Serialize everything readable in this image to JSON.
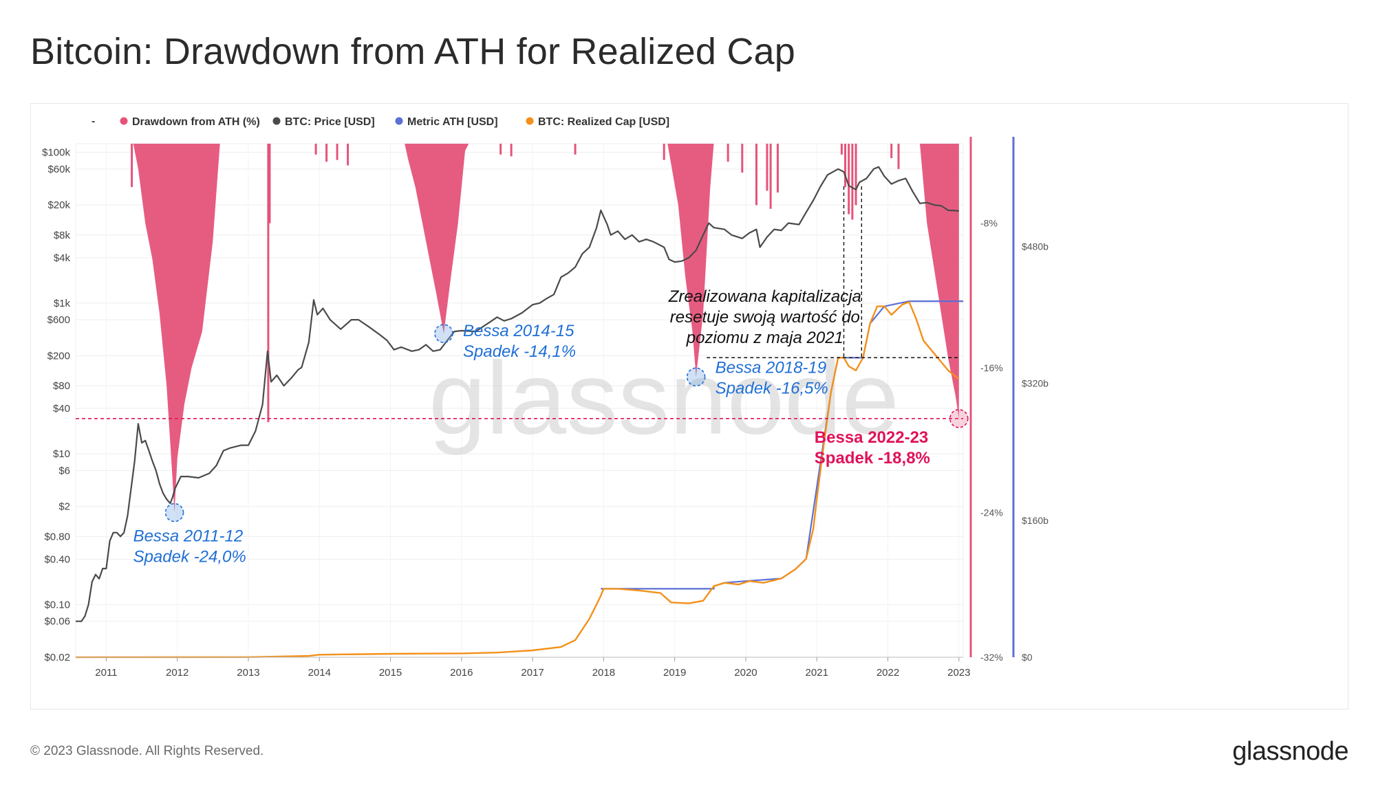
{
  "title": "Bitcoin: Drawdown from ATH for Realized Cap",
  "footer": {
    "copyright": "© 2023 Glassnode. All Rights Reserved.",
    "logo": "glassnode"
  },
  "watermark": "glassnode",
  "colors": {
    "drawdown": "#e5537a",
    "price": "#4a4a4a",
    "metric_ath": "#5b6fd6",
    "realized_cap": "#f39019",
    "annotation_blue": "#1f6fd6",
    "annotation_red": "#e0125a"
  },
  "chart_data": {
    "type": "line",
    "legend": {
      "dash": "-",
      "items": [
        {
          "name": "Drawdown from ATH (%)",
          "color": "#e5537a"
        },
        {
          "name": "BTC: Price [USD]",
          "color": "#4a4a4a"
        },
        {
          "name": "Metric ATH [USD]",
          "color": "#5b6fd6"
        },
        {
          "name": "BTC: Realized Cap [USD]",
          "color": "#f39019"
        }
      ]
    },
    "x_ticks": [
      "2011",
      "2012",
      "2013",
      "2014",
      "2015",
      "2016",
      "2017",
      "2018",
      "2019",
      "2020",
      "2021",
      "2022",
      "2023"
    ],
    "x_range": [
      2010.57,
      2023.06
    ],
    "price_axis": {
      "scale": "log",
      "range": [
        0.02,
        130000
      ],
      "ticks": [
        {
          "label": "$100k",
          "value": 100000
        },
        {
          "label": "$60k",
          "value": 60000
        },
        {
          "label": "$20k",
          "value": 20000
        },
        {
          "label": "$8k",
          "value": 8000
        },
        {
          "label": "$4k",
          "value": 4000
        },
        {
          "label": "$1k",
          "value": 1000
        },
        {
          "label": "$600",
          "value": 600
        },
        {
          "label": "$200",
          "value": 200
        },
        {
          "label": "$80",
          "value": 80
        },
        {
          "label": "$40",
          "value": 40
        },
        {
          "label": "$10",
          "value": 10
        },
        {
          "label": "$6",
          "value": 6
        },
        {
          "label": "$2",
          "value": 2
        },
        {
          "label": "$0.80",
          "value": 0.8
        },
        {
          "label": "$0.40",
          "value": 0.4
        },
        {
          "label": "$0.10",
          "value": 0.1
        },
        {
          "label": "$0.06",
          "value": 0.06
        },
        {
          "label": "$0.02",
          "value": 0.02
        }
      ]
    },
    "drawdown_axis": {
      "range": [
        -32,
        -3.6
      ],
      "ticks": [
        {
          "label": "-8%",
          "value": -8
        },
        {
          "label": "-16%",
          "value": -16
        },
        {
          "label": "-24%",
          "value": -24
        },
        {
          "label": "-32%",
          "value": -32
        }
      ]
    },
    "realized_cap_axis": {
      "range": [
        0,
        600
      ],
      "unit": "billion USD",
      "ticks": [
        {
          "label": "$480b",
          "value": 480
        },
        {
          "label": "$320b",
          "value": 320
        },
        {
          "label": "$160b",
          "value": 160
        },
        {
          "label": "$0",
          "value": 0
        }
      ]
    },
    "series": [
      {
        "name": "BTC: Price [USD]",
        "points": [
          [
            2010.57,
            0.06
          ],
          [
            2010.65,
            0.06
          ],
          [
            2010.7,
            0.07
          ],
          [
            2010.75,
            0.1
          ],
          [
            2010.8,
            0.2
          ],
          [
            2010.85,
            0.25
          ],
          [
            2010.9,
            0.22
          ],
          [
            2010.95,
            0.3
          ],
          [
            2011.0,
            0.3
          ],
          [
            2011.05,
            0.7
          ],
          [
            2011.1,
            0.9
          ],
          [
            2011.15,
            0.9
          ],
          [
            2011.2,
            0.8
          ],
          [
            2011.25,
            0.9
          ],
          [
            2011.3,
            1.5
          ],
          [
            2011.35,
            3.5
          ],
          [
            2011.4,
            8
          ],
          [
            2011.45,
            25
          ],
          [
            2011.5,
            14
          ],
          [
            2011.55,
            15
          ],
          [
            2011.6,
            11
          ],
          [
            2011.65,
            8
          ],
          [
            2011.7,
            6
          ],
          [
            2011.75,
            4
          ],
          [
            2011.8,
            3
          ],
          [
            2011.85,
            2.5
          ],
          [
            2011.9,
            2.2
          ],
          [
            2011.93,
            2.6
          ],
          [
            2011.97,
            3.5
          ],
          [
            2012.05,
            5
          ],
          [
            2012.15,
            5
          ],
          [
            2012.3,
            4.8
          ],
          [
            2012.45,
            5.5
          ],
          [
            2012.55,
            7
          ],
          [
            2012.65,
            11
          ],
          [
            2012.75,
            12
          ],
          [
            2012.9,
            13
          ],
          [
            2013.0,
            13
          ],
          [
            2013.1,
            20
          ],
          [
            2013.2,
            45
          ],
          [
            2013.27,
            230
          ],
          [
            2013.32,
            90
          ],
          [
            2013.4,
            110
          ],
          [
            2013.5,
            80
          ],
          [
            2013.6,
            100
          ],
          [
            2013.7,
            130
          ],
          [
            2013.75,
            140
          ],
          [
            2013.85,
            300
          ],
          [
            2013.92,
            1100
          ],
          [
            2013.97,
            700
          ],
          [
            2014.05,
            850
          ],
          [
            2014.15,
            600
          ],
          [
            2014.3,
            450
          ],
          [
            2014.45,
            600
          ],
          [
            2014.55,
            600
          ],
          [
            2014.7,
            480
          ],
          [
            2014.85,
            380
          ],
          [
            2014.95,
            320
          ],
          [
            2015.05,
            240
          ],
          [
            2015.15,
            260
          ],
          [
            2015.3,
            230
          ],
          [
            2015.4,
            240
          ],
          [
            2015.5,
            280
          ],
          [
            2015.6,
            230
          ],
          [
            2015.7,
            240
          ],
          [
            2015.8,
            320
          ],
          [
            2015.9,
            420
          ],
          [
            2016.0,
            430
          ],
          [
            2016.2,
            420
          ],
          [
            2016.4,
            560
          ],
          [
            2016.5,
            650
          ],
          [
            2016.6,
            580
          ],
          [
            2016.7,
            620
          ],
          [
            2016.85,
            740
          ],
          [
            2017.0,
            950
          ],
          [
            2017.1,
            1000
          ],
          [
            2017.2,
            1150
          ],
          [
            2017.3,
            1300
          ],
          [
            2017.4,
            2200
          ],
          [
            2017.5,
            2500
          ],
          [
            2017.6,
            3000
          ],
          [
            2017.7,
            4500
          ],
          [
            2017.8,
            5500
          ],
          [
            2017.9,
            10000
          ],
          [
            2017.96,
            17000
          ],
          [
            2018.05,
            11000
          ],
          [
            2018.1,
            8000
          ],
          [
            2018.2,
            9000
          ],
          [
            2018.3,
            7000
          ],
          [
            2018.4,
            8000
          ],
          [
            2018.5,
            6500
          ],
          [
            2018.6,
            7000
          ],
          [
            2018.7,
            6500
          ],
          [
            2018.85,
            5500
          ],
          [
            2018.92,
            3800
          ],
          [
            2019.0,
            3500
          ],
          [
            2019.1,
            3600
          ],
          [
            2019.2,
            4000
          ],
          [
            2019.3,
            5000
          ],
          [
            2019.4,
            8000
          ],
          [
            2019.48,
            11500
          ],
          [
            2019.55,
            10000
          ],
          [
            2019.7,
            9500
          ],
          [
            2019.8,
            8000
          ],
          [
            2019.95,
            7200
          ],
          [
            2020.05,
            8500
          ],
          [
            2020.15,
            9500
          ],
          [
            2020.2,
            5500
          ],
          [
            2020.3,
            7500
          ],
          [
            2020.4,
            9500
          ],
          [
            2020.5,
            9200
          ],
          [
            2020.6,
            11500
          ],
          [
            2020.75,
            11000
          ],
          [
            2020.85,
            16000
          ],
          [
            2020.95,
            23000
          ],
          [
            2021.05,
            35000
          ],
          [
            2021.15,
            50000
          ],
          [
            2021.3,
            60000
          ],
          [
            2021.38,
            55000
          ],
          [
            2021.45,
            36000
          ],
          [
            2021.55,
            32000
          ],
          [
            2021.6,
            40000
          ],
          [
            2021.7,
            45000
          ],
          [
            2021.8,
            60000
          ],
          [
            2021.87,
            64000
          ],
          [
            2021.95,
            48000
          ],
          [
            2022.05,
            38000
          ],
          [
            2022.15,
            42000
          ],
          [
            2022.25,
            45000
          ],
          [
            2022.35,
            30000
          ],
          [
            2022.45,
            21000
          ],
          [
            2022.55,
            21500
          ],
          [
            2022.65,
            20000
          ],
          [
            2022.75,
            19500
          ],
          [
            2022.85,
            17000
          ],
          [
            2022.95,
            16800
          ],
          [
            2023.0,
            16600
          ]
        ]
      },
      {
        "name": "BTC: Realized Cap [USD]",
        "unit": "billion USD",
        "points": [
          [
            2010.57,
            0
          ],
          [
            2013.0,
            0.2
          ],
          [
            2013.85,
            1.5
          ],
          [
            2014.0,
            3
          ],
          [
            2015.0,
            4
          ],
          [
            2016.0,
            4.5
          ],
          [
            2016.5,
            5.5
          ],
          [
            2017.0,
            8
          ],
          [
            2017.4,
            12
          ],
          [
            2017.6,
            20
          ],
          [
            2017.8,
            45
          ],
          [
            2017.95,
            70
          ],
          [
            2018.0,
            80
          ],
          [
            2018.2,
            80
          ],
          [
            2018.5,
            78
          ],
          [
            2018.8,
            75
          ],
          [
            2018.95,
            64
          ],
          [
            2019.2,
            63
          ],
          [
            2019.4,
            66
          ],
          [
            2019.55,
            83
          ],
          [
            2019.7,
            87
          ],
          [
            2019.9,
            85
          ],
          [
            2020.05,
            89
          ],
          [
            2020.25,
            87
          ],
          [
            2020.5,
            92
          ],
          [
            2020.7,
            103
          ],
          [
            2020.85,
            115
          ],
          [
            2020.95,
            150
          ],
          [
            2021.0,
            185
          ],
          [
            2021.1,
            250
          ],
          [
            2021.2,
            310
          ],
          [
            2021.3,
            350
          ],
          [
            2021.38,
            350
          ],
          [
            2021.45,
            340
          ],
          [
            2021.55,
            335
          ],
          [
            2021.65,
            350
          ],
          [
            2021.75,
            390
          ],
          [
            2021.85,
            410
          ],
          [
            2021.95,
            410
          ],
          [
            2022.05,
            400
          ],
          [
            2022.2,
            412
          ],
          [
            2022.3,
            415
          ],
          [
            2022.4,
            395
          ],
          [
            2022.5,
            370
          ],
          [
            2022.6,
            360
          ],
          [
            2022.75,
            345
          ],
          [
            2022.85,
            335
          ],
          [
            2023.0,
            325
          ]
        ]
      },
      {
        "name": "Metric ATH [USD]",
        "unit": "billion USD",
        "points": [
          [
            2017.96,
            80
          ],
          [
            2019.55,
            80
          ],
          [
            2019.55,
            83
          ],
          [
            2019.7,
            87
          ],
          [
            2020.0,
            89
          ],
          [
            2020.5,
            92
          ],
          [
            2020.5,
            92
          ],
          [
            2020.7,
            103
          ],
          [
            2020.85,
            115
          ],
          [
            2021.2,
            310
          ],
          [
            2021.3,
            350
          ],
          [
            2021.6,
            350
          ],
          [
            2021.65,
            350
          ],
          [
            2021.75,
            390
          ],
          [
            2021.95,
            410
          ],
          [
            2022.3,
            416
          ],
          [
            2023.06,
            416
          ]
        ]
      },
      {
        "name": "Drawdown from ATH (%)",
        "points": [
          [
            2011.38,
            -3.6
          ],
          [
            2011.45,
            -5
          ],
          [
            2011.55,
            -8
          ],
          [
            2011.65,
            -10
          ],
          [
            2011.75,
            -13
          ],
          [
            2011.85,
            -17
          ],
          [
            2011.93,
            -22
          ],
          [
            2011.96,
            -24
          ],
          [
            2012.0,
            -21
          ],
          [
            2012.1,
            -18
          ],
          [
            2012.2,
            -16
          ],
          [
            2012.35,
            -14
          ],
          [
            2012.5,
            -9
          ],
          [
            2012.6,
            -3.6
          ],
          [
            2015.2,
            -3.6
          ],
          [
            2015.25,
            -4.5
          ],
          [
            2015.35,
            -6
          ],
          [
            2015.45,
            -8
          ],
          [
            2015.55,
            -10
          ],
          [
            2015.65,
            -12
          ],
          [
            2015.75,
            -14.1
          ],
          [
            2015.85,
            -11
          ],
          [
            2015.95,
            -8
          ],
          [
            2016.05,
            -4
          ],
          [
            2016.1,
            -3.6
          ],
          [
            2018.9,
            -3.6
          ],
          [
            2019.05,
            -7
          ],
          [
            2019.15,
            -11
          ],
          [
            2019.25,
            -14
          ],
          [
            2019.3,
            -16.5
          ],
          [
            2019.4,
            -13
          ],
          [
            2019.5,
            -6
          ],
          [
            2019.55,
            -3.6
          ],
          [
            2022.45,
            -3.6
          ],
          [
            2022.55,
            -8
          ],
          [
            2022.65,
            -10.5
          ],
          [
            2022.75,
            -13
          ],
          [
            2022.85,
            -15.5
          ],
          [
            2022.95,
            -17.5
          ],
          [
            2023.0,
            -18.8
          ]
        ]
      }
    ],
    "annotations": [
      {
        "text_lines": [
          "Bessa 2011-12",
          "Spadek -24,0%"
        ],
        "year": 2011.96,
        "drawdown": -24.0,
        "color": "#1f6fd6"
      },
      {
        "text_lines": [
          "Bessa 2014-15",
          "Spadek -14,1%"
        ],
        "year": 2015.75,
        "drawdown": -14.1,
        "color": "#1f6fd6"
      },
      {
        "text_lines": [
          "Bessa 2018-19",
          "Spadek -16,5%"
        ],
        "year": 2019.3,
        "drawdown": -16.5,
        "color": "#1f6fd6"
      },
      {
        "text_lines": [
          "Bessa 2022-23",
          "Spadek -18,8%"
        ],
        "year": 2023.0,
        "drawdown": -18.8,
        "color": "#e0125a"
      },
      {
        "text_lines": [
          "Zrealizowana kapitalizacja",
          "resetuje swoją wartość do",
          "poziomu z maja 2021"
        ],
        "reference_value_billion": 350,
        "from_year": 2021.38,
        "to_year": 2023.0,
        "color": "#111111"
      }
    ],
    "reference_line_drawdown": -18.8
  }
}
